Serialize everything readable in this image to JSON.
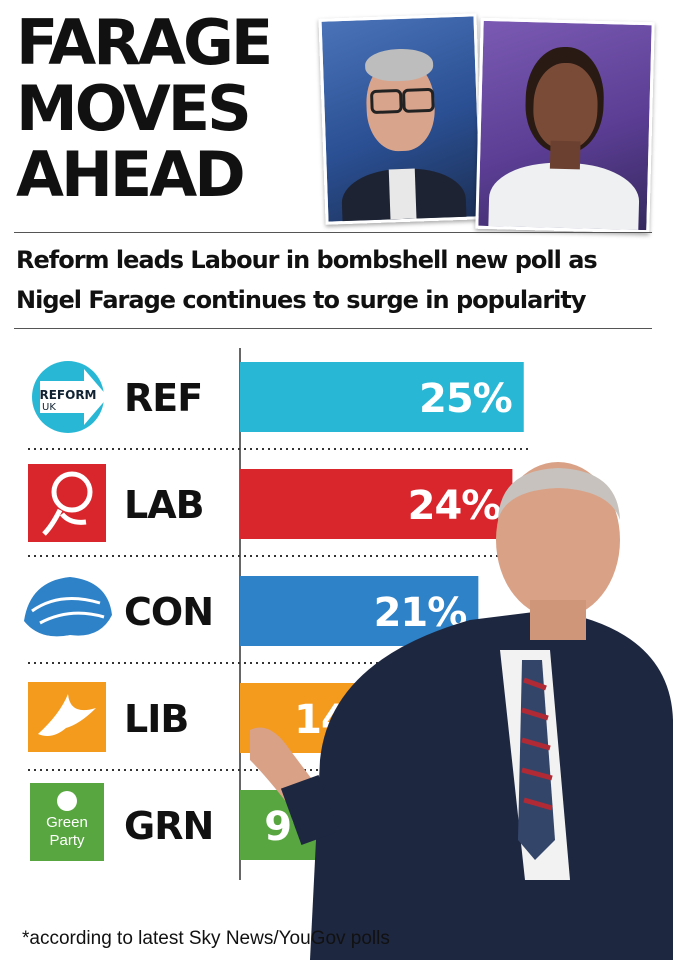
{
  "headline": [
    "FARAGE",
    "MOVES",
    "AHEAD"
  ],
  "subtitle": [
    "Reform leads Labour in bombshell new poll as",
    "Nigel Farage continues to surge in popularity"
  ],
  "footnote": "*according to latest Sky News/YouGov polls",
  "logos": {
    "reform": [
      "REFORM",
      "UK"
    ],
    "green": [
      "Green",
      "Party"
    ]
  },
  "chart_data": {
    "type": "bar",
    "orientation": "horizontal",
    "categories": [
      "REF",
      "LAB",
      "CON",
      "LIB",
      "GRN"
    ],
    "values": [
      25,
      24,
      21,
      14,
      9
    ],
    "value_labels": [
      "25%",
      "24%",
      "21%",
      "14%",
      "9%"
    ],
    "colors": [
      "#28b8d6",
      "#d8262c",
      "#2e82c8",
      "#f49a1c",
      "#58a640"
    ],
    "grid": false,
    "legend": "none"
  }
}
